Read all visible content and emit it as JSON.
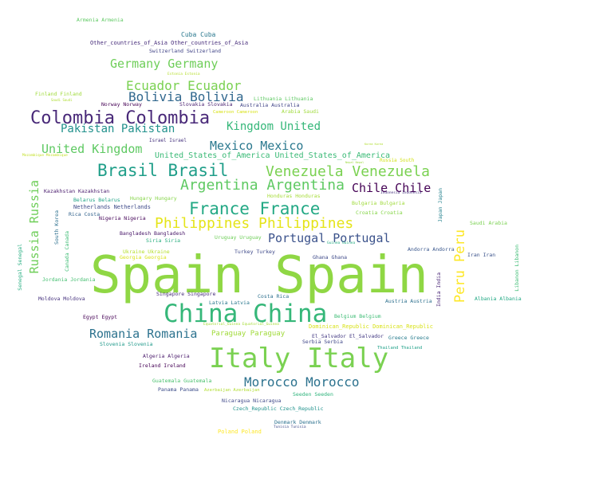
{
  "words": [
    {
      "text": "Spain Spain",
      "color": "#8fd744"
    },
    {
      "text": "Italy Italy",
      "color": "#7ad151"
    },
    {
      "text": "China China",
      "color": "#35b779"
    },
    {
      "text": "Colombia Colombia",
      "color": "#482878"
    },
    {
      "text": "Brasil Brasil",
      "color": "#1f9e89"
    },
    {
      "text": "Venezuela Venezuela",
      "color": "#7ad151"
    },
    {
      "text": "France France",
      "color": "#22a884"
    },
    {
      "text": "Argentina Argentina",
      "color": "#5ec962"
    },
    {
      "text": "Philippines Philippines",
      "color": "#e5e419"
    },
    {
      "text": "Morocco Morocco",
      "color": "#2c728e"
    },
    {
      "text": "Romania Romania",
      "color": "#2c728e"
    },
    {
      "text": "Bolivia Bolivia",
      "color": "#31688e"
    },
    {
      "text": "Ecuador Ecuador",
      "color": "#7ad151"
    },
    {
      "text": "Germany Germany",
      "color": "#6ece58"
    },
    {
      "text": "Pakistan Pakistan",
      "color": "#21918c"
    },
    {
      "text": "Kingdom United",
      "color": "#35b779"
    },
    {
      "text": "United Kingdom",
      "color": "#5ec962"
    },
    {
      "text": "Mexico Mexico",
      "color": "#2a788e"
    },
    {
      "text": "Portugal Portugal",
      "color": "#3b528b"
    },
    {
      "text": "Chile Chile",
      "color": "#440154"
    },
    {
      "text": "Peru Peru",
      "color": "#fde725"
    },
    {
      "text": "Russia Russia",
      "color": "#6ece58"
    },
    {
      "text": "United_States_of_America United_States_of_America",
      "color": "#3aba76"
    },
    {
      "text": "Armenia Armenia",
      "color": "#5ec962"
    },
    {
      "text": "Cuba Cuba",
      "color": "#2a788e"
    },
    {
      "text": "Other_countries_of_Asia Other_countries_of_Asia",
      "color": "#472d7b"
    },
    {
      "text": "Switzerland Switzerland",
      "color": "#414487"
    },
    {
      "text": "Estonia Estonia",
      "color": "#b5de2b"
    },
    {
      "text": "Finland Finland",
      "color": "#9fda3a"
    },
    {
      "text": "Saudi Saudi",
      "color": "#addc30"
    },
    {
      "text": "Norway Norway",
      "color": "#440154"
    },
    {
      "text": "Slovakia Slovakia",
      "color": "#481f70"
    },
    {
      "text": "Lithuania Lithuania",
      "color": "#5ec962"
    },
    {
      "text": "Australia Australia",
      "color": "#414487"
    },
    {
      "text": "Arabia Saudi",
      "color": "#9fda3a"
    },
    {
      "text": "Cameroon Cameroon",
      "color": "#d8e219"
    },
    {
      "text": "Israel Israel",
      "color": "#46337e"
    },
    {
      "text": "Mozambique Mozambique",
      "color": "#c2df23"
    },
    {
      "text": "Kazakhstan Kazakhstan",
      "color": "#481a6c"
    },
    {
      "text": "Belarus Belarus",
      "color": "#20a486"
    },
    {
      "text": "Hungary Hungary",
      "color": "#86d549"
    },
    {
      "text": "Netherlands Netherlands",
      "color": "#3e4a89"
    },
    {
      "text": "Rica Costa",
      "color": "#33638d"
    },
    {
      "text": "Nigeria Nigeria",
      "color": "#450559"
    },
    {
      "text": "Honduras Honduras",
      "color": "#a5db36"
    },
    {
      "text": "Indonesia Indonesia",
      "color": "#46327e"
    },
    {
      "text": "Bulgaria Bulgaria",
      "color": "#9fda3a"
    },
    {
      "text": "Croatia Croatia",
      "color": "#86d549"
    },
    {
      "text": "Japan Japan",
      "color": "#26828e"
    },
    {
      "text": "Saudi Arabia",
      "color": "#7ad151"
    },
    {
      "text": "South Korea",
      "color": "#2d708e"
    },
    {
      "text": "Canada Canada",
      "color": "#3dbc74"
    },
    {
      "text": "Bangladesh Bangladesh",
      "color": "#481769"
    },
    {
      "text": "Siria Siria",
      "color": "#29af7f"
    },
    {
      "text": "Uruguay Uruguay",
      "color": "#6ece58"
    },
    {
      "text": "Guinea Guinea",
      "color": "#25ab82"
    },
    {
      "text": "Ukraine Ukraine",
      "color": "#b5de2b"
    },
    {
      "text": "Georgia Georgia",
      "color": "#d8e219"
    },
    {
      "text": "Turkey Turkey",
      "color": "#3e4989"
    },
    {
      "text": "Ghana Ghana",
      "color": "#3e4a89"
    },
    {
      "text": "Andorra Andorra",
      "color": "#39568c"
    },
    {
      "text": "Iran Iran",
      "color": "#3b528b"
    },
    {
      "text": "Senegal Senegal",
      "color": "#26ad81"
    },
    {
      "text": "Jordania Jordania",
      "color": "#44bf70"
    },
    {
      "text": "Libanon Libanon",
      "color": "#3dbc74"
    },
    {
      "text": "Moldova Moldova",
      "color": "#46327e"
    },
    {
      "text": "Singapore Singapore",
      "color": "#472d7b"
    },
    {
      "text": "Latvia Latvia",
      "color": "#2a788e"
    },
    {
      "text": "Costa Rica",
      "color": "#2d708e"
    },
    {
      "text": "Austria Austria",
      "color": "#2d708e"
    },
    {
      "text": "India India",
      "color": "#482576"
    },
    {
      "text": "Albania Albania",
      "color": "#22a884"
    },
    {
      "text": "Egypt Egypt",
      "color": "#440154"
    },
    {
      "text": "Belgium Belgium",
      "color": "#3dbc74"
    },
    {
      "text": "Equatorial_Guinea Equatorial_Guinea",
      "color": "#a5db36"
    },
    {
      "text": "Paraguay Paraguay",
      "color": "#a0da39"
    },
    {
      "text": "Dominican_Republic Dominican_Republic",
      "color": "#d8e219"
    },
    {
      "text": "El_Salvador El_Salvador",
      "color": "#443a83"
    },
    {
      "text": "Greece Greece",
      "color": "#287c8e"
    },
    {
      "text": "Slovenia Slovenia",
      "color": "#1f998a"
    },
    {
      "text": "Serbia Serbia",
      "color": "#3f4788"
    },
    {
      "text": "Thailand Thailand",
      "color": "#1fa188"
    },
    {
      "text": "Algeria Algeria",
      "color": "#48186a"
    },
    {
      "text": "Ireland Ireland",
      "color": "#440154"
    },
    {
      "text": "Guatemala Guatemala",
      "color": "#4ac16d"
    },
    {
      "text": "Panama Panama",
      "color": "#3d4e8a"
    },
    {
      "text": "Azerbaijan Azerbaijan",
      "color": "#b0dd2f"
    },
    {
      "text": "Seeden Seeden",
      "color": "#2fb47c"
    },
    {
      "text": "Nicaragua Nicaragua",
      "color": "#3f4889"
    },
    {
      "text": "Czech_Republic Czech_Republic",
      "color": "#20928c"
    },
    {
      "text": "Denmark Denmark",
      "color": "#2c718e"
    },
    {
      "text": "Tunisia Tunisia",
      "color": "#3e4c8a"
    },
    {
      "text": "Poland Poland",
      "color": "#fde725"
    },
    {
      "text": "Russia South",
      "color": "#d2e21b"
    },
    {
      "text": "Nepal Nepal",
      "color": "#9bd93c"
    },
    {
      "text": "Korea Korea",
      "color": "#b0dd2f"
    }
  ]
}
